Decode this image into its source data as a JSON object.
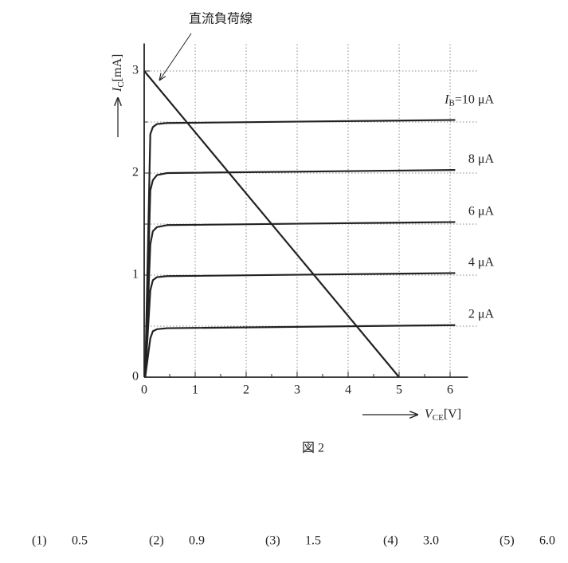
{
  "chart_data": {
    "type": "line",
    "x": [
      0.02,
      0.12,
      0.17,
      0.25,
      0.45,
      6.1
    ],
    "series": [
      {
        "name": "10 μA",
        "values": [
          0,
          2.38,
          2.45,
          2.48,
          2.49,
          2.52
        ]
      },
      {
        "name": "8 μA",
        "values": [
          0,
          1.83,
          1.93,
          1.98,
          2.0,
          2.03
        ]
      },
      {
        "name": "6 μA",
        "values": [
          0,
          1.3,
          1.43,
          1.47,
          1.49,
          1.52
        ]
      },
      {
        "name": "4 μA",
        "values": [
          0,
          0.85,
          0.95,
          0.98,
          0.99,
          1.02
        ]
      },
      {
        "name": "2 μA",
        "values": [
          0,
          0.38,
          0.45,
          0.47,
          0.48,
          0.51
        ]
      }
    ],
    "color": "#222222",
    "series_label_prefix": {
      "symbol": "I",
      "sub": "B",
      "eq": "="
    },
    "load_line": {
      "x": [
        0,
        5
      ],
      "values": [
        3,
        0
      ]
    },
    "annotation": "直流負荷線",
    "xlabel": {
      "symbol": "V",
      "sub": "CE",
      "unit": "[V]"
    },
    "ylabel": {
      "symbol": "I",
      "sub": "C",
      "unit": "[mA]"
    },
    "xlim": [
      0,
      6.35
    ],
    "ylim": [
      0,
      3.27
    ],
    "xticks": [
      0,
      1,
      2,
      3,
      4,
      5,
      6
    ],
    "yticks": [
      0,
      1,
      2,
      3
    ],
    "xminor": [
      0.5,
      1.5,
      2.5,
      3.5,
      4.5,
      5.5
    ],
    "yminor": [
      0.5,
      1.5,
      2.5
    ],
    "grid": true
  },
  "caption": "図 2",
  "choices": [
    {
      "num": "(1)",
      "text": "0.5"
    },
    {
      "num": "(2)",
      "text": "0.9"
    },
    {
      "num": "(3)",
      "text": "1.5"
    },
    {
      "num": "(4)",
      "text": "3.0"
    },
    {
      "num": "(5)",
      "text": "6.0"
    }
  ]
}
